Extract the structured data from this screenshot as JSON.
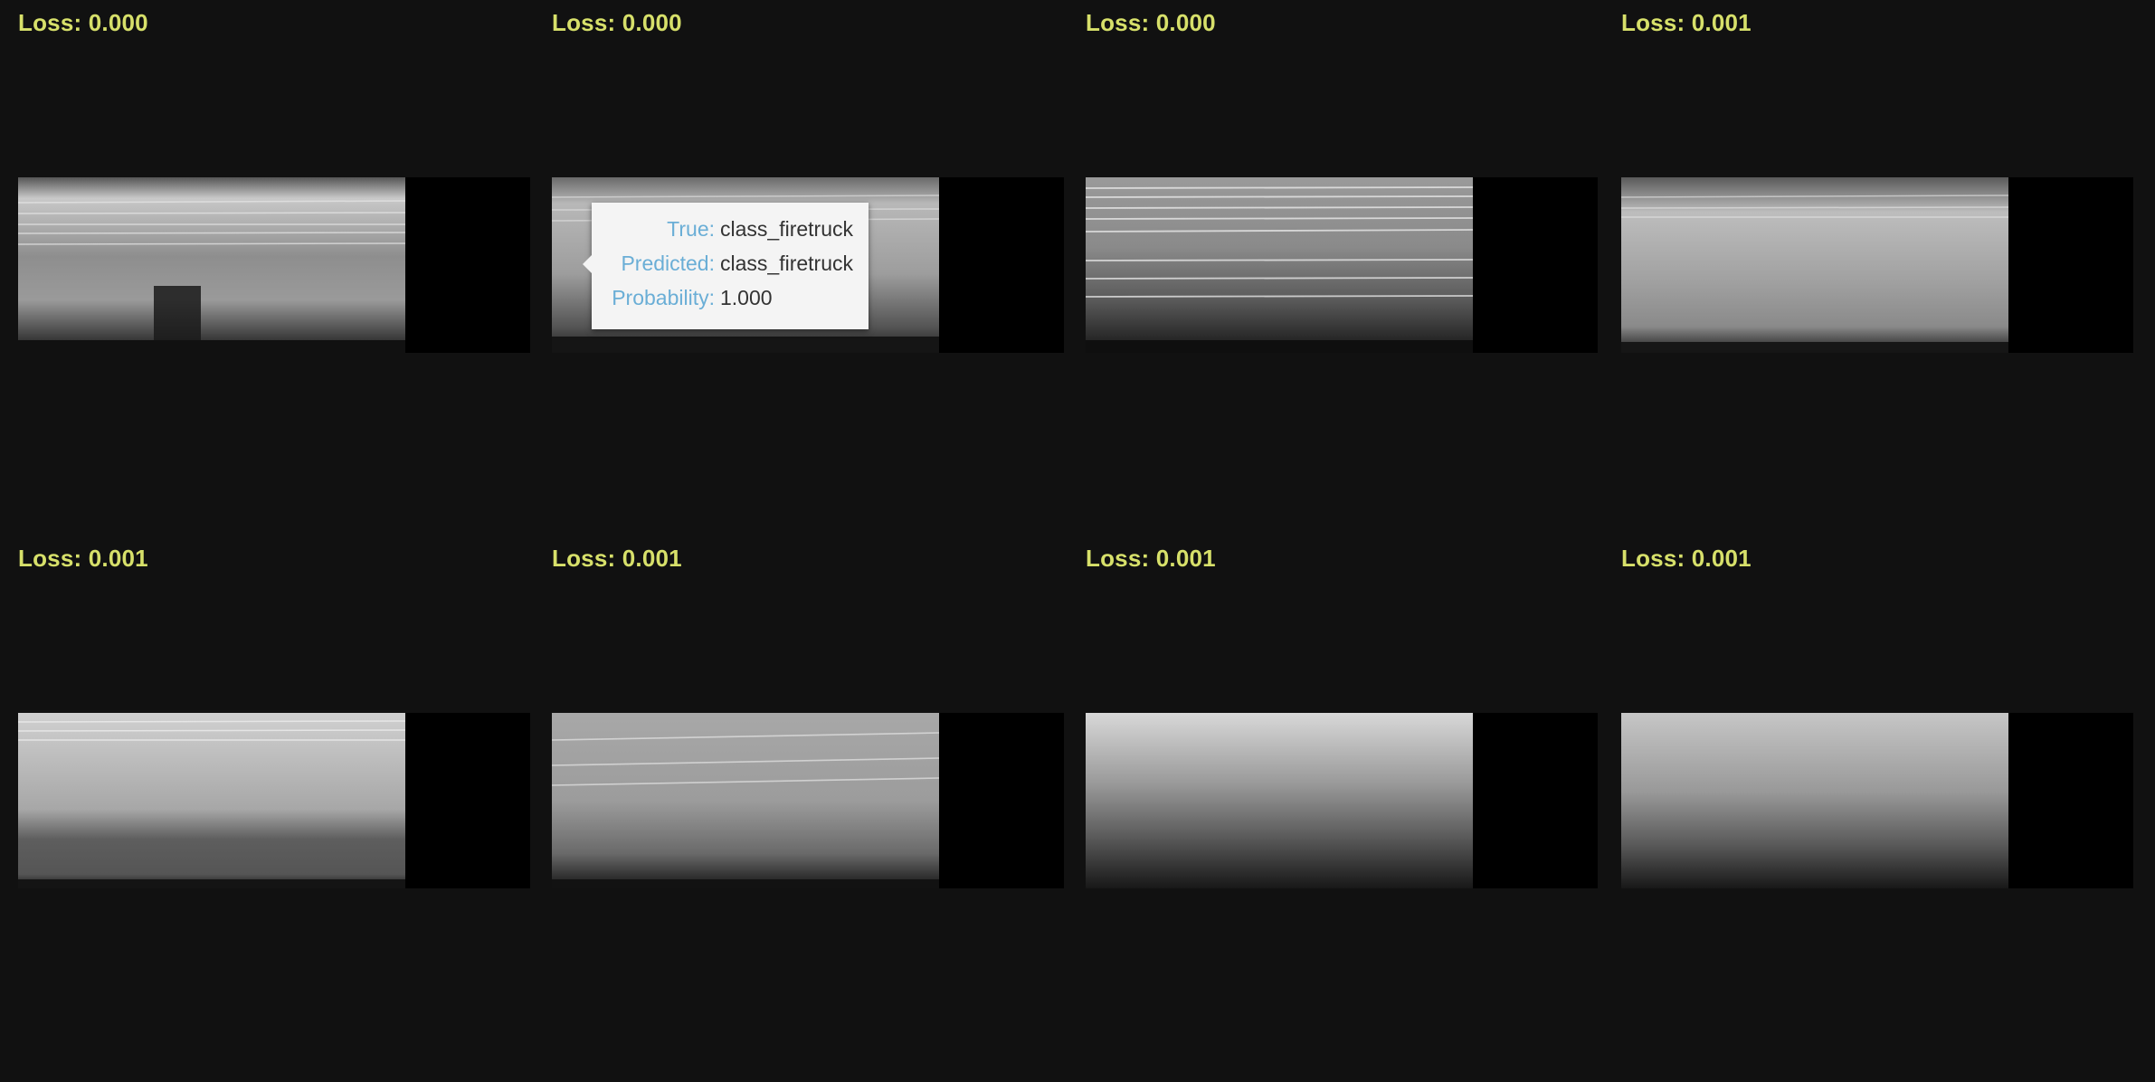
{
  "cards": [
    {
      "loss_text": "Loss: 0.000"
    },
    {
      "loss_text": "Loss: 0.000"
    },
    {
      "loss_text": "Loss: 0.000"
    },
    {
      "loss_text": "Loss: 0.001"
    },
    {
      "loss_text": "Loss: 0.001"
    },
    {
      "loss_text": "Loss: 0.001"
    },
    {
      "loss_text": "Loss: 0.001"
    },
    {
      "loss_text": "Loss: 0.001"
    }
  ],
  "tooltip": {
    "true_label": "True:",
    "true_value": "class_firetruck",
    "predicted_label": "Predicted:",
    "predicted_value": "class_firetruck",
    "probability_label": "Probability:",
    "probability_value": "1.000"
  },
  "colors": {
    "background": "#111111",
    "loss_text": "#d7e06a",
    "tooltip_key": "#6aaed6",
    "tooltip_value": "#333333",
    "tooltip_bg": "#f4f4f4"
  },
  "icons": {
    "spectrogram": "spectrogram-image"
  }
}
